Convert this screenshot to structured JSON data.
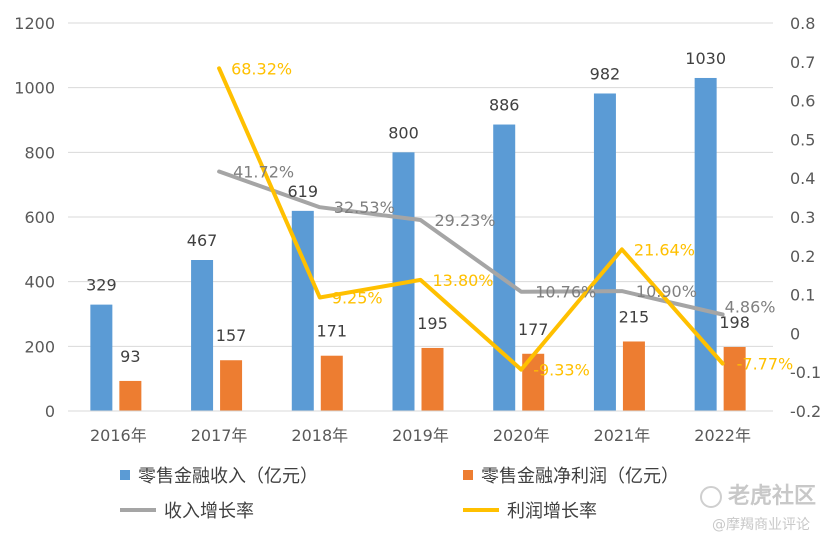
{
  "chart_data": {
    "type": "bar",
    "categories": [
      "2016年",
      "2017年",
      "2018年",
      "2019年",
      "2020年",
      "2021年",
      "2022年"
    ],
    "series": [
      {
        "name": "零售金融收入（亿元）",
        "type": "bar",
        "axis": "left",
        "color": "#5b9bd5",
        "values": [
          329,
          467,
          619,
          800,
          886,
          982,
          1030
        ],
        "labels": [
          "329",
          "467",
          "619",
          "800",
          "886",
          "982",
          "1030"
        ]
      },
      {
        "name": "零售金融净利润（亿元）",
        "type": "bar",
        "axis": "left",
        "color": "#ed7d31",
        "values": [
          93,
          157,
          171,
          195,
          177,
          215,
          198
        ],
        "labels": [
          "93",
          "157",
          "171",
          "195",
          "177",
          "215",
          "198"
        ]
      },
      {
        "name": "收入增长率",
        "type": "line",
        "axis": "right",
        "color": "#a5a5a5",
        "values": [
          null,
          0.4172,
          0.3253,
          0.2923,
          0.1076,
          0.109,
          0.0486
        ],
        "labels": [
          null,
          "41.72%",
          "32.53%",
          "29.23%",
          "10.76%",
          "10.90%",
          "4.86%"
        ]
      },
      {
        "name": "利润增长率",
        "type": "line",
        "axis": "right",
        "color": "#ffc000",
        "values": [
          null,
          0.6832,
          0.0925,
          0.138,
          -0.0933,
          0.2164,
          -0.0777
        ],
        "labels": [
          null,
          "68.32%",
          "9.25%",
          "13.80%",
          "-9.33%",
          "21.64%",
          "-7.77%"
        ]
      }
    ],
    "y_left": {
      "min": 0,
      "max": 1200,
      "ticks": [
        "0",
        "200",
        "400",
        "600",
        "800",
        "1000",
        "1200"
      ]
    },
    "y_right": {
      "min": -0.2,
      "max": 0.8,
      "ticks": [
        "-0.2",
        "-0.1",
        "0",
        "0.1",
        "0.2",
        "0.3",
        "0.4",
        "0.5",
        "0.6",
        "0.7",
        "0.8"
      ]
    },
    "grid": true,
    "legend_position": "bottom"
  },
  "watermark": {
    "brand": "老虎社区",
    "account": "@摩羯商业评论"
  }
}
